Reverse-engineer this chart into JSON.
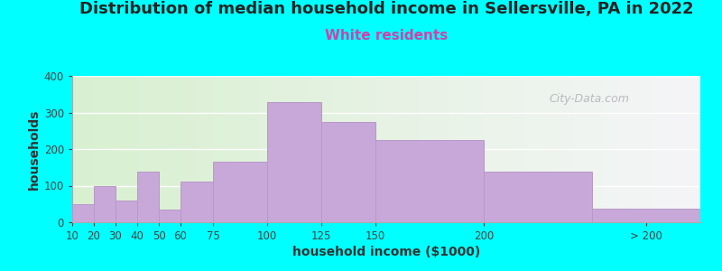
{
  "title": "Distribution of median household income in Sellersville, PA in 2022",
  "subtitle": "White residents",
  "xlabel": "household income ($1000)",
  "ylabel": "households",
  "background_color": "#00FFFF",
  "plot_bg_gradient_left": "#d8f0d0",
  "plot_bg_gradient_right": "#f5f5f8",
  "bar_color": "#c8a8d8",
  "bar_edge_color": "#b898c8",
  "left_edges": [
    10,
    20,
    30,
    40,
    50,
    60,
    75,
    100,
    125,
    150,
    200,
    250
  ],
  "widths": [
    10,
    10,
    10,
    10,
    10,
    15,
    25,
    25,
    25,
    50,
    50,
    50
  ],
  "values": [
    50,
    100,
    60,
    138,
    35,
    110,
    165,
    328,
    275,
    225,
    138,
    38
  ],
  "xlim": [
    10,
    300
  ],
  "ylim": [
    0,
    400
  ],
  "yticks": [
    0,
    100,
    200,
    300,
    400
  ],
  "tick_positions": [
    10,
    20,
    30,
    40,
    50,
    60,
    75,
    100,
    125,
    150,
    200,
    275
  ],
  "tick_labels": [
    "10",
    "20",
    "30",
    "40",
    "50",
    "60",
    "75",
    "100",
    "125",
    "150",
    "200",
    "> 200"
  ],
  "title_fontsize": 13,
  "subtitle_fontsize": 11,
  "subtitle_color": "#cc44aa",
  "axis_label_fontsize": 10,
  "watermark": "City-Data.com",
  "title_color": "#222222"
}
